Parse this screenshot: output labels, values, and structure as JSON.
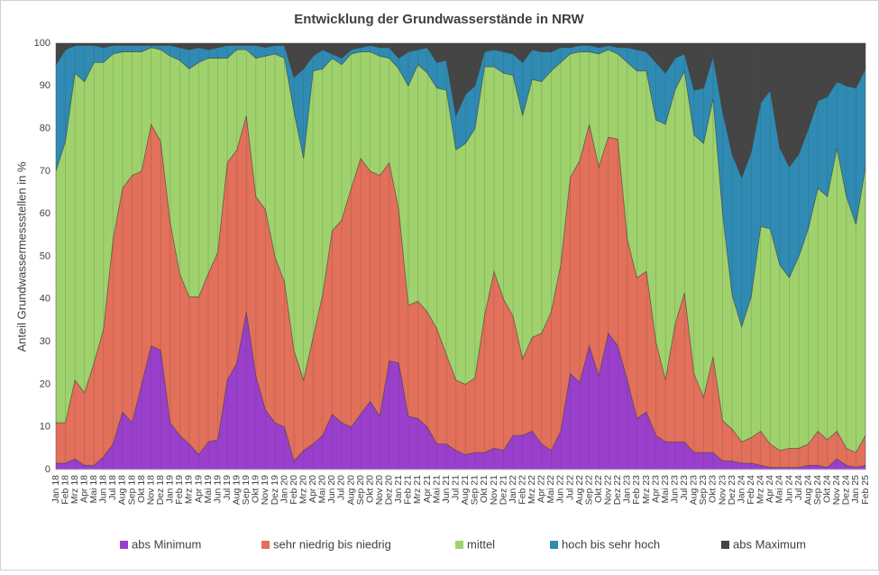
{
  "chart_data": {
    "type": "stacked_area",
    "title": "Entwicklung der Grundwasserstände in NRW",
    "y_label": "Anteil Grundwassermessstellen in %",
    "categories": [
      "Jan 18",
      "Feb 18",
      "Mrz 18",
      "Apr 18",
      "Mai 18",
      "Jun 18",
      "Jul 18",
      "Aug 18",
      "Sep 18",
      "Okt 18",
      "Nov 18",
      "Dez 18",
      "Jan 19",
      "Feb 19",
      "Mrz 19",
      "Apr 19",
      "Mai 19",
      "Jun 19",
      "Jul 19",
      "Aug 19",
      "Sep 19",
      "Okt 19",
      "Nov 19",
      "Dez 19",
      "Jan 20",
      "Feb 20",
      "Mrz 20",
      "Apr 20",
      "Mai 20",
      "Jun 20",
      "Jul 20",
      "Aug 20",
      "Sep 20",
      "Okt 20",
      "Nov 20",
      "Dez 20",
      "Jan 21",
      "Feb 21",
      "Mrz 21",
      "Apr 21",
      "Mai 21",
      "Jun 21",
      "Jul 21",
      "Aug 21",
      "Sep 21",
      "Okt 21",
      "Nov 21",
      "Dez 21",
      "Jan 22",
      "Feb 22",
      "Mrz 22",
      "Apr 22",
      "Mai 22",
      "Jun 22",
      "Jul 22",
      "Aug 22",
      "Sep 22",
      "Okt 22",
      "Nov 22",
      "Dez 22",
      "Jan 23",
      "Feb 23",
      "Mrz 23",
      "Apr 23",
      "Mai 23",
      "Jun 23",
      "Jul 23",
      "Aug 23",
      "Sep 23",
      "Okt 23",
      "Nov 23",
      "Dez 23",
      "Jan 24",
      "Feb 24",
      "Mrz 24",
      "Apr 24",
      "Mai 24",
      "Jun 24",
      "Jul 24",
      "Aug 24",
      "Sep 24",
      "Okt 24",
      "Nov 24",
      "Dez 24",
      "Jan 25",
      "Feb 25"
    ],
    "series": [
      {
        "name": "abs Minimum",
        "color": "#9a3fcc",
        "values": [
          1.5,
          1.5,
          2.5,
          1,
          1,
          3,
          6,
          13.5,
          11,
          20,
          29,
          28,
          11,
          8,
          6,
          3.5,
          6.5,
          7,
          21,
          25,
          37,
          22,
          14,
          11,
          10,
          2,
          4.5,
          6,
          8,
          13,
          11,
          10,
          13,
          16,
          12.5,
          25.5,
          25,
          12.5,
          12,
          10,
          6,
          6,
          4.5,
          3.5,
          4,
          4,
          5,
          4.5,
          8,
          8,
          9,
          6,
          4.5,
          9,
          22.5,
          20.5,
          29,
          22,
          32,
          29,
          21,
          12,
          13.5,
          8,
          6.5,
          6.5,
          6.5,
          4,
          4,
          4,
          2,
          2,
          1.5,
          1.5,
          1,
          0.5,
          0.5,
          0.5,
          0.5,
          1,
          1,
          0.5,
          2.5,
          1,
          0.5,
          1
        ]
      },
      {
        "name": "sehr niedrig bis niedrig",
        "color": "#e2705a",
        "values": [
          9.5,
          9.5,
          18.5,
          17,
          24,
          30,
          48,
          52.5,
          58,
          50,
          52,
          49,
          47,
          38,
          34.5,
          37,
          39.5,
          44,
          51,
          50,
          46,
          42,
          47,
          39,
          34,
          26,
          16.5,
          25,
          33,
          43,
          47.5,
          56,
          60,
          54,
          56.5,
          46.5,
          36,
          26,
          27.5,
          27,
          27,
          21,
          16.5,
          16.5,
          17.5,
          32,
          41.5,
          35.5,
          28,
          18,
          22,
          26,
          32.5,
          39,
          46,
          52,
          52,
          49,
          46,
          48.5,
          33,
          33,
          33,
          22,
          14.5,
          27.5,
          35,
          18.5,
          13,
          22.5,
          9.5,
          7.5,
          5,
          6,
          8,
          5.5,
          4,
          4.5,
          4.5,
          5,
          8,
          6.5,
          6.5,
          4,
          3.5,
          7
        ]
      },
      {
        "name": "mittel",
        "color": "#9fd26c",
        "values": [
          59,
          66,
          72,
          73,
          70.5,
          62.5,
          43.5,
          32,
          29,
          28,
          18,
          21.5,
          39,
          50,
          53.5,
          55,
          50.5,
          45.5,
          24.5,
          23.5,
          15.5,
          32.5,
          36,
          47.5,
          52.5,
          56,
          52,
          62.5,
          53,
          40.5,
          36.5,
          31.5,
          25,
          28,
          28,
          24.5,
          33,
          51.5,
          55.5,
          56,
          56.5,
          62,
          54,
          56.5,
          58.5,
          58.5,
          48,
          53,
          56.5,
          57,
          60.5,
          59,
          56.5,
          47.5,
          29,
          25.5,
          17,
          26.5,
          20.5,
          20,
          41.5,
          48.5,
          47,
          52,
          60,
          55,
          52,
          56,
          59.5,
          60.5,
          48.5,
          31.5,
          27,
          33,
          48,
          50.5,
          43.5,
          40,
          45,
          50.5,
          57,
          57,
          66.5,
          59,
          53.5,
          63
        ]
      },
      {
        "name": "hoch bis sehr hoch",
        "color": "#2f8bb3",
        "values": [
          25,
          21.5,
          6.5,
          8.5,
          4,
          3.5,
          2,
          1.5,
          1.5,
          1.5,
          0.5,
          1,
          2.5,
          3,
          4.5,
          3.5,
          2,
          2.5,
          3,
          1,
          1,
          3,
          2,
          2,
          3,
          8,
          21,
          3.5,
          4.5,
          1,
          1.5,
          1,
          1,
          1.5,
          2,
          2.5,
          2.5,
          8,
          3.5,
          6,
          6,
          7,
          8,
          11.5,
          10,
          3.5,
          4,
          5,
          5,
          12.5,
          7,
          7,
          4.5,
          3.5,
          1.5,
          1.5,
          1.5,
          1.5,
          1,
          1.5,
          3.5,
          5,
          4.5,
          13.5,
          12,
          7.5,
          4,
          10.5,
          13,
          10,
          24,
          33,
          35,
          34,
          29,
          32.5,
          27.5,
          26,
          24,
          23.5,
          20.5,
          23.5,
          15.5,
          26,
          32,
          23
        ]
      },
      {
        "name": "abs Maximum",
        "color": "#454545",
        "values": [
          5,
          1.5,
          0.5,
          0.5,
          0.5,
          1,
          0.5,
          0.5,
          0.5,
          0.5,
          0.5,
          0.5,
          0.5,
          1,
          1.5,
          1,
          1.5,
          1,
          0.5,
          0.5,
          0.5,
          0.5,
          1,
          0.5,
          0.5,
          8,
          6,
          3,
          1.5,
          2.5,
          3.5,
          1.5,
          1,
          0.5,
          1,
          1,
          3.5,
          2,
          1.5,
          1,
          4.5,
          4,
          17,
          12,
          10,
          2,
          1.5,
          2,
          2.5,
          4.5,
          1.5,
          2,
          2,
          1,
          1,
          0.5,
          0.5,
          1,
          0.5,
          1,
          1,
          1.5,
          2,
          4.5,
          7,
          3.5,
          2.5,
          11,
          10.5,
          3,
          16,
          26,
          31.5,
          25.5,
          14,
          11,
          24.5,
          29,
          26,
          20,
          13.5,
          12.5,
          9,
          10,
          10.5,
          6
        ]
      }
    ],
    "ylim": [
      0,
      100
    ],
    "yticks": [
      0,
      10,
      20,
      30,
      40,
      50,
      60,
      70,
      80,
      90,
      100
    ],
    "grid": true,
    "legend": "bottom"
  }
}
